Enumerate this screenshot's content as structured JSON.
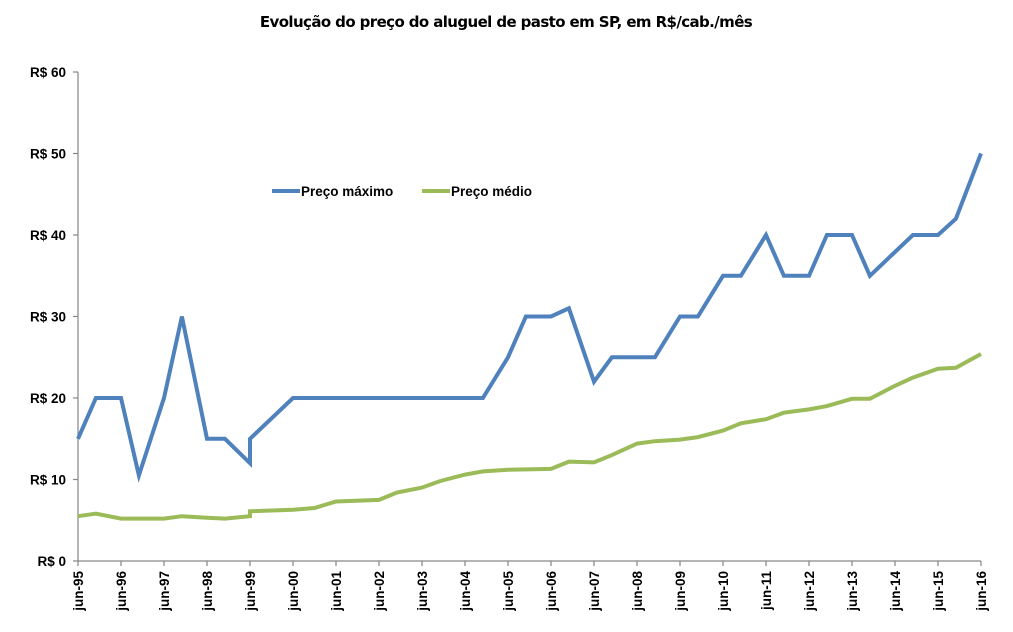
{
  "chart_data": {
    "type": "line",
    "title": "Evolução do preço do aluguel de pasto em SP, em R$/cab./mês",
    "xlabel": "",
    "ylabel": "",
    "ylim": [
      0,
      60
    ],
    "y_ticks": [
      0,
      10,
      20,
      30,
      40,
      50,
      60
    ],
    "y_tick_labels": [
      "R$ 0",
      "R$ 10",
      "R$ 20",
      "R$ 30",
      "R$ 40",
      "R$ 50",
      "R$ 60"
    ],
    "x_unit": "months since jun-95",
    "xlim": [
      0,
      252
    ],
    "x_ticks": [
      0,
      12,
      24,
      36,
      48,
      60,
      72,
      84,
      96,
      108,
      120,
      132,
      144,
      156,
      168,
      180,
      192,
      204,
      216,
      228,
      240,
      252
    ],
    "x_tick_labels": [
      "jun-95",
      "jun-96",
      "jun-97",
      "jun-98",
      "jun-99",
      "jun-00",
      "jun-01",
      "jun-02",
      "jun-03",
      "jun-04",
      "jun-05",
      "jun-06",
      "jun-07",
      "jun-08",
      "jun-09",
      "jun-10",
      "jun-11",
      "jun-12",
      "jun-13",
      "jun-14",
      "jun-15",
      "jun-16"
    ],
    "grid": false,
    "legend_position": "top-left-inside",
    "series": [
      {
        "name": "Preço máximo",
        "color": "#4f81bd",
        "x": [
          0,
          5,
          12,
          17,
          24,
          29,
          36,
          41,
          48,
          48,
          60,
          113,
          120,
          125,
          132,
          137,
          144,
          149,
          161,
          168,
          173,
          180,
          185,
          192,
          197,
          204,
          209,
          216,
          221,
          233,
          240,
          245,
          252
        ],
        "values": [
          15,
          20,
          20,
          10.5,
          20,
          30,
          15,
          15,
          12,
          15,
          20,
          20,
          25,
          30,
          30,
          31,
          22,
          25,
          25,
          30,
          30,
          35,
          35,
          40,
          35,
          35,
          40,
          40,
          35,
          40,
          40,
          42,
          50
        ]
      },
      {
        "name": "Preço médio",
        "color": "#9bbb59",
        "x": [
          0,
          5,
          12,
          24,
          29,
          36,
          41,
          48,
          48,
          60,
          66,
          72,
          84,
          89,
          96,
          101,
          108,
          113,
          120,
          132,
          137,
          144,
          149,
          156,
          161,
          168,
          173,
          180,
          185,
          192,
          197,
          204,
          209,
          216,
          221,
          228,
          233,
          240,
          245,
          252
        ],
        "values": [
          5.5,
          5.8,
          5.2,
          5.2,
          5.5,
          5.3,
          5.2,
          5.5,
          6.1,
          6.3,
          6.5,
          7.3,
          7.5,
          8.4,
          9.0,
          9.8,
          10.6,
          11.0,
          11.2,
          11.3,
          12.2,
          12.1,
          13.0,
          14.4,
          14.7,
          14.9,
          15.2,
          16.0,
          16.9,
          17.4,
          18.2,
          18.6,
          19.0,
          19.9,
          19.9,
          21.5,
          22.5,
          23.6,
          23.7,
          25.4
        ]
      }
    ]
  }
}
